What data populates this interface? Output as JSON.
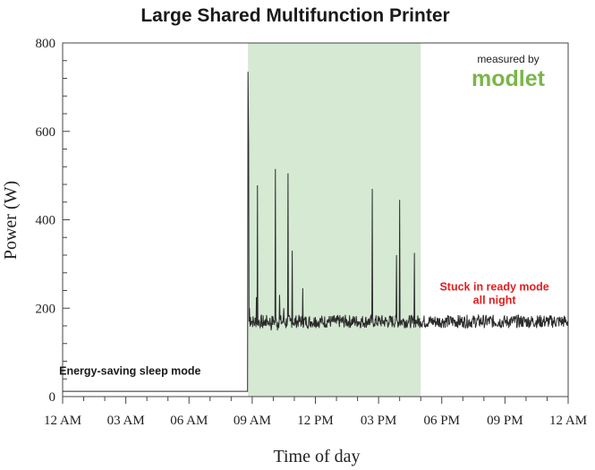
{
  "chart_data": {
    "type": "line",
    "title": "Large Shared Multifunction Printer",
    "xlabel": "Time of day",
    "ylabel": "Power (W)",
    "xlim": [
      0,
      24
    ],
    "ylim": [
      0,
      800
    ],
    "grid": false,
    "x_ticks": [
      {
        "value": 0,
        "label": "12 AM"
      },
      {
        "value": 3,
        "label": "03 AM"
      },
      {
        "value": 6,
        "label": "06 AM"
      },
      {
        "value": 9,
        "label": "09 AM"
      },
      {
        "value": 12,
        "label": "12 PM"
      },
      {
        "value": 15,
        "label": "03 PM"
      },
      {
        "value": 18,
        "label": "06 PM"
      },
      {
        "value": 21,
        "label": "09 PM"
      },
      {
        "value": 24,
        "label": "12 AM"
      }
    ],
    "y_ticks": [
      {
        "value": 0,
        "label": "0"
      },
      {
        "value": 200,
        "label": "200"
      },
      {
        "value": 400,
        "label": "400"
      },
      {
        "value": 600,
        "label": "600"
      },
      {
        "value": 800,
        "label": "800"
      }
    ],
    "highlight_band": {
      "x_start": 8.8,
      "x_end": 17,
      "color": "#d5e9d3"
    },
    "series_color": "#2b2b2b",
    "sleep_level": 12,
    "ready_level": 170,
    "series": [
      {
        "x": [
          0,
          8.78,
          8.8,
          8.83,
          8.87,
          8.92,
          9.0,
          9.1,
          9.2,
          9.25,
          9.3,
          9.4,
          9.5,
          9.6,
          9.7,
          9.8,
          9.9,
          10.0,
          10.1,
          10.2,
          10.3,
          10.4,
          10.5,
          10.6,
          10.7,
          10.8,
          10.9,
          11.0,
          11.2,
          11.4,
          11.6,
          11.8,
          12.0,
          12.1,
          12.2,
          12.4,
          12.6,
          12.8,
          13.0,
          13.5,
          14.0,
          14.5,
          14.7,
          14.8,
          15.0,
          15.5,
          15.85,
          15.9,
          16.0,
          16.1,
          16.2,
          16.4,
          16.6,
          16.7,
          16.8,
          17.0,
          18.0,
          19.0,
          20.0,
          21.0,
          22.0,
          23.0,
          24.0
        ],
        "y": [
          12,
          12,
          735,
          570,
          200,
          180,
          170,
          160,
          225,
          478,
          165,
          160,
          155,
          160,
          175,
          165,
          150,
          175,
          515,
          150,
          230,
          165,
          200,
          155,
          505,
          170,
          330,
          160,
          175,
          245,
          160,
          170,
          180,
          165,
          170,
          165,
          175,
          170,
          165,
          170,
          170,
          175,
          470,
          165,
          170,
          165,
          320,
          170,
          445,
          165,
          175,
          170,
          165,
          325,
          170,
          170,
          170,
          170,
          170,
          170,
          170,
          170,
          170
        ]
      }
    ],
    "annotations": [
      {
        "text": "Energy-saving sleep mode",
        "x": 3.2,
        "y": 50,
        "color": "#1a1a1a"
      },
      {
        "text": "Stuck in ready mode",
        "x": 20.5,
        "y": 240,
        "color": "#e02020"
      },
      {
        "text": "all night",
        "x": 20.5,
        "y": 210,
        "color": "#e02020"
      }
    ]
  },
  "brand": {
    "caption": "measured by",
    "name": "modlet",
    "color": "#7ab648"
  }
}
